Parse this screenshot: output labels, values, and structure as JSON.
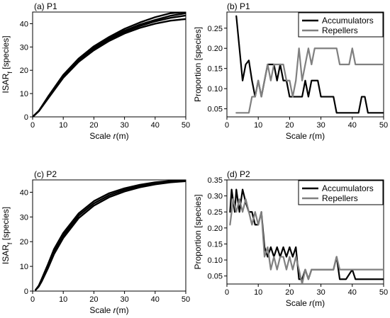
{
  "chart_data": [
    {
      "id": "a",
      "type": "line",
      "title": "(a) P1",
      "xlabel_prefix": "Scale ",
      "xlabel_var": "r",
      "xlabel_suffix": "(m)",
      "ylabel_main": "ISAR",
      "ylabel_sub": "f",
      "ylabel_suffix": " [species]",
      "xlim": [
        0,
        50
      ],
      "ylim": [
        0,
        45
      ],
      "xticks": [
        0,
        10,
        20,
        30,
        40,
        50
      ],
      "yticks": [
        0,
        10,
        20,
        30,
        40
      ],
      "yticks_labels": [
        "0",
        "10",
        "20",
        "30",
        "40"
      ],
      "series": [
        {
          "color": "#000000",
          "x": [
            0,
            2,
            5,
            10,
            15,
            20,
            25,
            30,
            35,
            40,
            45,
            50
          ],
          "y": [
            0,
            2.5,
            8,
            17,
            24,
            29,
            33,
            36.5,
            39,
            41,
            42.5,
            43.5
          ]
        },
        {
          "color": "#000000",
          "x": [
            0,
            2,
            5,
            10,
            15,
            20,
            25,
            30,
            35,
            40,
            45,
            50
          ],
          "y": [
            0,
            2.5,
            8.3,
            17.5,
            24.5,
            29.6,
            33.6,
            37,
            39.6,
            41.6,
            43.4,
            44.5
          ]
        },
        {
          "color": "#000000",
          "x": [
            0,
            2,
            5,
            10,
            15,
            20,
            25,
            30,
            35,
            40,
            45,
            50
          ],
          "y": [
            0,
            2.5,
            8.6,
            18,
            25,
            30.3,
            34.3,
            37.8,
            40.5,
            42.8,
            44.5,
            45
          ]
        },
        {
          "color": "#000000",
          "x": [
            0,
            2,
            5,
            10,
            15,
            20,
            25,
            30,
            35,
            40,
            45,
            50
          ],
          "y": [
            0,
            2.4,
            7.8,
            16.8,
            23.6,
            28.6,
            32.6,
            35.8,
            38.2,
            40,
            41.3,
            42
          ]
        }
      ]
    },
    {
      "id": "b",
      "type": "line",
      "title": "(b) P1",
      "xlabel_prefix": "Scale ",
      "xlabel_var": "r",
      "xlabel_suffix": "(m)",
      "ylabel_main": "Proportion [species]",
      "xlim": [
        0,
        50
      ],
      "ylim": [
        0.03,
        0.29
      ],
      "xticks": [
        0,
        10,
        20,
        30,
        40,
        50
      ],
      "yticks": [
        0.05,
        0.1,
        0.15,
        0.2,
        0.25
      ],
      "yticks_labels": [
        "0.05",
        "0.10",
        "0.15",
        "0.20",
        "0.25"
      ],
      "legend": [
        "Accumulators",
        "Repellers"
      ],
      "legend_position": "top-right",
      "series": [
        {
          "name": "Accumulators",
          "color": "#000000",
          "x": [
            3,
            5,
            6,
            7,
            8,
            9,
            10,
            11,
            12,
            13,
            14,
            15,
            16,
            17,
            18,
            19,
            20,
            21,
            22,
            23,
            24,
            25,
            26,
            27,
            28,
            29,
            30,
            31,
            32,
            33,
            34,
            35,
            36,
            38,
            40,
            41,
            42,
            43,
            44,
            45,
            46,
            48,
            50
          ],
          "y": [
            0.28,
            0.12,
            0.16,
            0.17,
            0.12,
            0.08,
            0.12,
            0.08,
            0.12,
            0.16,
            0.16,
            0.16,
            0.12,
            0.16,
            0.12,
            0.12,
            0.08,
            0.08,
            0.08,
            0.08,
            0.08,
            0.12,
            0.08,
            0.12,
            0.12,
            0.12,
            0.08,
            0.08,
            0.08,
            0.08,
            0.08,
            0.04,
            0.04,
            0.04,
            0.04,
            0.04,
            0.04,
            0.08,
            0.08,
            0.04,
            0.04,
            0.04,
            0.04
          ]
        },
        {
          "name": "Repellers",
          "color": "#808080",
          "x": [
            3,
            5,
            7,
            8,
            9,
            10,
            11,
            12,
            13,
            14,
            15,
            16,
            17,
            18,
            19,
            20,
            21,
            22,
            23,
            24,
            25,
            26,
            27,
            28,
            30,
            32,
            33,
            34,
            35,
            36,
            38,
            39,
            40,
            41,
            42,
            45,
            50
          ],
          "y": [
            0.04,
            0.04,
            0.04,
            0.08,
            0.08,
            0.12,
            0.08,
            0.12,
            0.16,
            0.12,
            0.16,
            0.16,
            0.16,
            0.16,
            0.12,
            0.12,
            0.08,
            0.12,
            0.2,
            0.12,
            0.16,
            0.2,
            0.16,
            0.2,
            0.2,
            0.2,
            0.2,
            0.2,
            0.2,
            0.16,
            0.16,
            0.16,
            0.2,
            0.16,
            0.16,
            0.16,
            0.16
          ]
        }
      ]
    },
    {
      "id": "c",
      "type": "line",
      "title": "(c) P2",
      "xlabel_prefix": "Scale ",
      "xlabel_var": "r",
      "xlabel_suffix": "(m)",
      "ylabel_main": "ISAR",
      "ylabel_sub": "f",
      "ylabel_suffix": " [species]",
      "xlim": [
        0,
        50
      ],
      "ylim": [
        0,
        45
      ],
      "xticks": [
        0,
        10,
        20,
        30,
        40,
        50
      ],
      "yticks": [
        0,
        10,
        20,
        30,
        40
      ],
      "yticks_labels": [
        "0",
        "10",
        "20",
        "30",
        "40"
      ],
      "series": [
        {
          "color": "#000000",
          "x": [
            1,
            2,
            3,
            5,
            7,
            10,
            15,
            20,
            25,
            30,
            35,
            40,
            45,
            50
          ],
          "y": [
            0.5,
            2,
            4.5,
            10,
            16,
            22.5,
            30.5,
            35.5,
            38.8,
            41,
            42.5,
            43.5,
            44.2,
            44.6
          ]
        },
        {
          "color": "#000000",
          "x": [
            1,
            2,
            3,
            5,
            7,
            10,
            15,
            20,
            25,
            30,
            35,
            40,
            45,
            50
          ],
          "y": [
            0.5,
            1.8,
            4,
            9.2,
            15,
            21.5,
            29.5,
            34.6,
            38,
            40.3,
            42,
            43.2,
            44,
            44.5
          ]
        },
        {
          "color": "#000000",
          "x": [
            1,
            2,
            3,
            5,
            7,
            10,
            15,
            20,
            25,
            30,
            35,
            40,
            45,
            50
          ],
          "y": [
            0.5,
            2.2,
            5,
            10.8,
            17,
            23.5,
            31.4,
            36.4,
            39.6,
            41.6,
            43,
            44,
            44.6,
            45
          ]
        }
      ]
    },
    {
      "id": "d",
      "type": "line",
      "title": "(d) P2",
      "xlabel_prefix": "Scale ",
      "xlabel_var": "r",
      "xlabel_suffix": "(m)",
      "ylabel_main": "Proportion [species]",
      "xlim": [
        0,
        50
      ],
      "ylim": [
        0.025,
        0.35
      ],
      "xticks": [
        0,
        10,
        20,
        30,
        40,
        50
      ],
      "yticks": [
        0.05,
        0.1,
        0.15,
        0.2,
        0.25,
        0.3,
        0.35
      ],
      "yticks_labels": [
        "0.05",
        "0.10",
        "0.15",
        "0.20",
        "0.25",
        "0.30",
        "0.35"
      ],
      "legend": [
        "Accumulators",
        "Repellers"
      ],
      "legend_position": "top-right",
      "series": [
        {
          "name": "Accumulators",
          "color": "#000000",
          "x": [
            1,
            1.5,
            2.5,
            3,
            4,
            5,
            6,
            7,
            8,
            9,
            10,
            11,
            12,
            13,
            14,
            15,
            16,
            17,
            18,
            19,
            20,
            21,
            22,
            23,
            24,
            25,
            26,
            27,
            28,
            30,
            32,
            34,
            35,
            36,
            38,
            40,
            41,
            42,
            45,
            50
          ],
          "y": [
            0.25,
            0.32,
            0.25,
            0.32,
            0.25,
            0.32,
            0.28,
            0.25,
            0.25,
            0.21,
            0.21,
            0.25,
            0.14,
            0.11,
            0.14,
            0.11,
            0.14,
            0.11,
            0.14,
            0.11,
            0.14,
            0.11,
            0.14,
            0.04,
            0.04,
            0.07,
            0.04,
            0.07,
            0.07,
            0.07,
            0.07,
            0.07,
            0.11,
            0.04,
            0.04,
            0.07,
            0.04,
            0.04,
            0.04,
            0.04
          ]
        },
        {
          "name": "Repellers",
          "color": "#808080",
          "x": [
            1,
            2,
            3,
            4,
            5,
            6,
            7,
            8,
            9,
            10,
            11,
            12,
            13,
            14,
            15,
            16,
            17,
            18,
            19,
            20,
            21,
            22,
            23,
            24,
            25,
            26,
            27,
            30,
            32,
            34,
            35,
            36,
            38,
            40,
            45,
            50
          ],
          "y": [
            0.21,
            0.29,
            0.25,
            0.29,
            0.25,
            0.29,
            0.25,
            0.21,
            0.25,
            0.21,
            0.25,
            0.11,
            0.14,
            0.07,
            0.11,
            0.07,
            0.11,
            0.11,
            0.07,
            0.11,
            0.07,
            0.11,
            0.07,
            0.025,
            0.07,
            0.04,
            0.07,
            0.07,
            0.07,
            0.07,
            0.11,
            0.07,
            0.07,
            0.07,
            0.07,
            0.07
          ]
        }
      ]
    }
  ]
}
